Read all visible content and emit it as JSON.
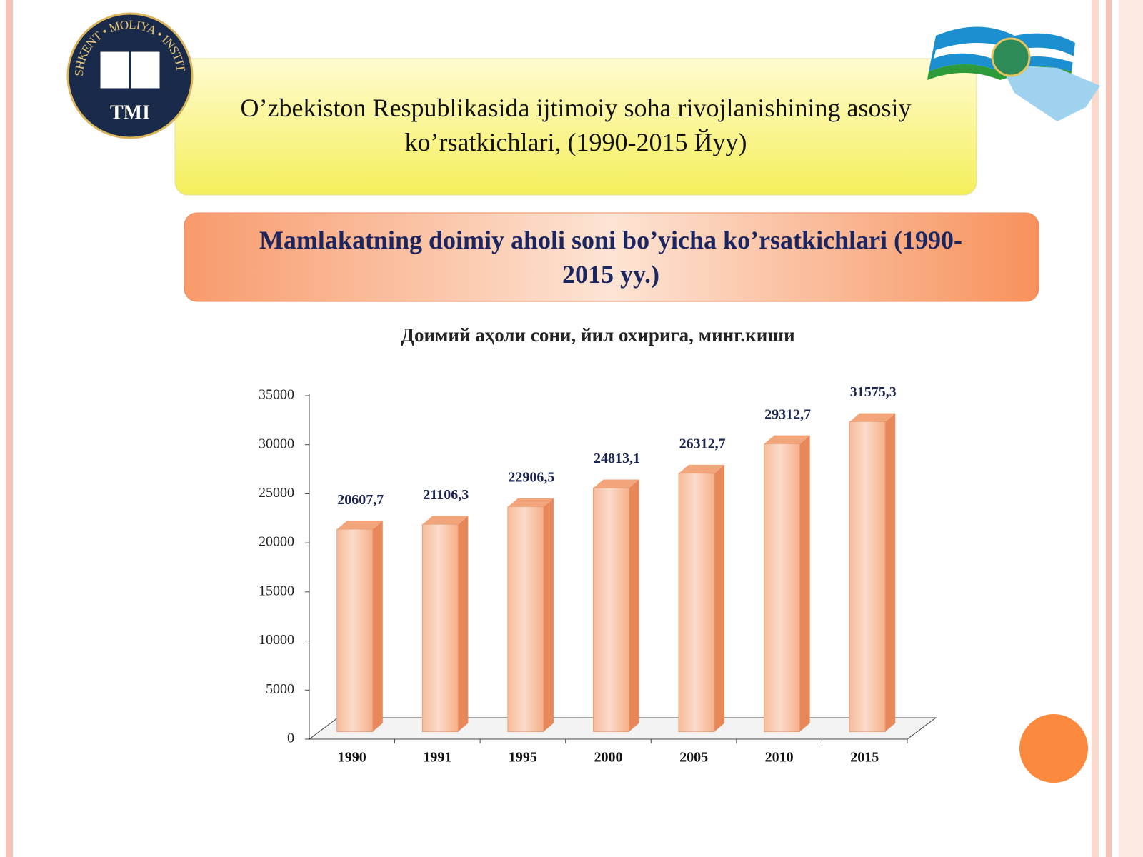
{
  "header": {
    "title": "O’zbekiston Respublikasida ijtimoiy soha rivojlanishining asosiy ko’rsatkichlari,  (1990-2015 Йуу)",
    "logo_ring": "TOSHKENT • MOLIYA • INSTITUTI",
    "logo_abbr": "TMI"
  },
  "banner": {
    "title": "Mamlakatning doimiy aholi soni bo’yicha ko’rsatkichlari (1990-2015 yy.)"
  },
  "chart_data": {
    "type": "bar",
    "title": "Доимий аҳоли сони, йил охирига, минг.киши",
    "categories": [
      "1990",
      "1991",
      "1995",
      "2000",
      "2005",
      "2010",
      "2015"
    ],
    "values": [
      20607.7,
      21106.3,
      22906.5,
      24813.1,
      26312.7,
      29312.7,
      31575.3
    ],
    "value_labels": [
      "20607,7",
      "21106,3",
      "22906,5",
      "24813,1",
      "26312,7",
      "29312,7",
      "31575,3"
    ],
    "color": "#f6b089",
    "ylim": [
      0,
      35000
    ],
    "yticks": [
      0,
      5000,
      10000,
      15000,
      20000,
      25000,
      30000,
      35000
    ],
    "grid": false
  }
}
